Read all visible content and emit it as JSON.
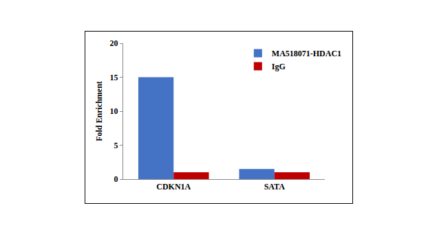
{
  "chart_data": {
    "type": "bar",
    "categories": [
      "CDKN1A",
      "SATA"
    ],
    "series": [
      {
        "name": "MA518071-HDAC1",
        "color": "#4472c4",
        "values": [
          15,
          1.5
        ]
      },
      {
        "name": "IgG",
        "color": "#c00000",
        "values": [
          1,
          1
        ]
      }
    ],
    "y_label": "Fold Enrichment",
    "ylim": [
      0,
      20
    ],
    "yticks": [
      0,
      5,
      10,
      15,
      20
    ],
    "grid": false,
    "legend": "upper right"
  }
}
